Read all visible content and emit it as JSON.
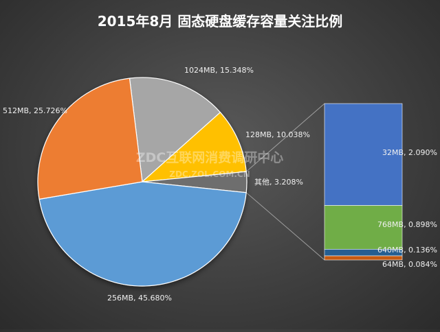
{
  "chart_data": {
    "type": "pie",
    "title": "2015年8月  固态硬盘缓存容量关注比例",
    "slices": [
      {
        "label": "1024MB, 15.348%",
        "value": 15.348,
        "color": "#a6a6a6"
      },
      {
        "label": "128MB, 10.038%",
        "value": 10.038,
        "color": "#ffc000"
      },
      {
        "label": "其他, 3.208%",
        "value": 3.208,
        "color": "#6e6e6e"
      },
      {
        "label": "256MB, 45.680%",
        "value": 45.68,
        "color": "#5b9bd5"
      },
      {
        "label": "512MB, 25.726%",
        "value": 25.726,
        "color": "#ed7d31"
      }
    ],
    "breakdown": {
      "of": "其他",
      "items": [
        {
          "label": "32MB, 2.090%",
          "value": 2.09,
          "color": "#4472c4"
        },
        {
          "label": "768MB, 0.898%",
          "value": 0.898,
          "color": "#70ad47"
        },
        {
          "label": "640MB, 0.136%",
          "value": 0.136,
          "color": "#255e91"
        },
        {
          "label": "64MB, 0.084%",
          "value": 0.084,
          "color": "#c55a11"
        }
      ]
    }
  },
  "watermark": {
    "main": "ZDC互联网消费调研中心",
    "sub": "ZDC.ZOL.COM.CN"
  }
}
